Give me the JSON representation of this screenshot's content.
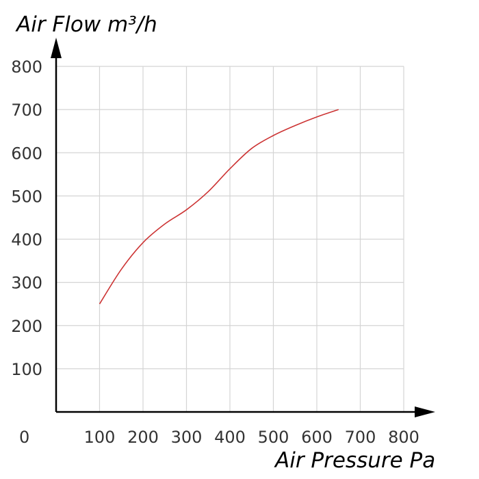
{
  "chart_data": {
    "type": "line",
    "ylabel": "Air Flow  m³/h",
    "xlabel": "Air Pressure  Pa",
    "origin_label": "0",
    "x_ticks": [
      100,
      200,
      300,
      400,
      500,
      600,
      700,
      800
    ],
    "y_ticks": [
      100,
      200,
      300,
      400,
      500,
      600,
      700,
      800
    ],
    "xlim": [
      0,
      800
    ],
    "ylim": [
      0,
      800
    ],
    "grid": true,
    "series": [
      {
        "color": "#cc3333",
        "points": [
          [
            100,
            250
          ],
          [
            150,
            330
          ],
          [
            200,
            392
          ],
          [
            250,
            435
          ],
          [
            300,
            468
          ],
          [
            350,
            510
          ],
          [
            400,
            563
          ],
          [
            450,
            610
          ],
          [
            500,
            640
          ],
          [
            550,
            663
          ],
          [
            600,
            683
          ],
          [
            650,
            700
          ]
        ]
      }
    ],
    "colors": {
      "grid": "#d4d4d4",
      "axis": "#000000",
      "line": "#cc3333"
    }
  }
}
